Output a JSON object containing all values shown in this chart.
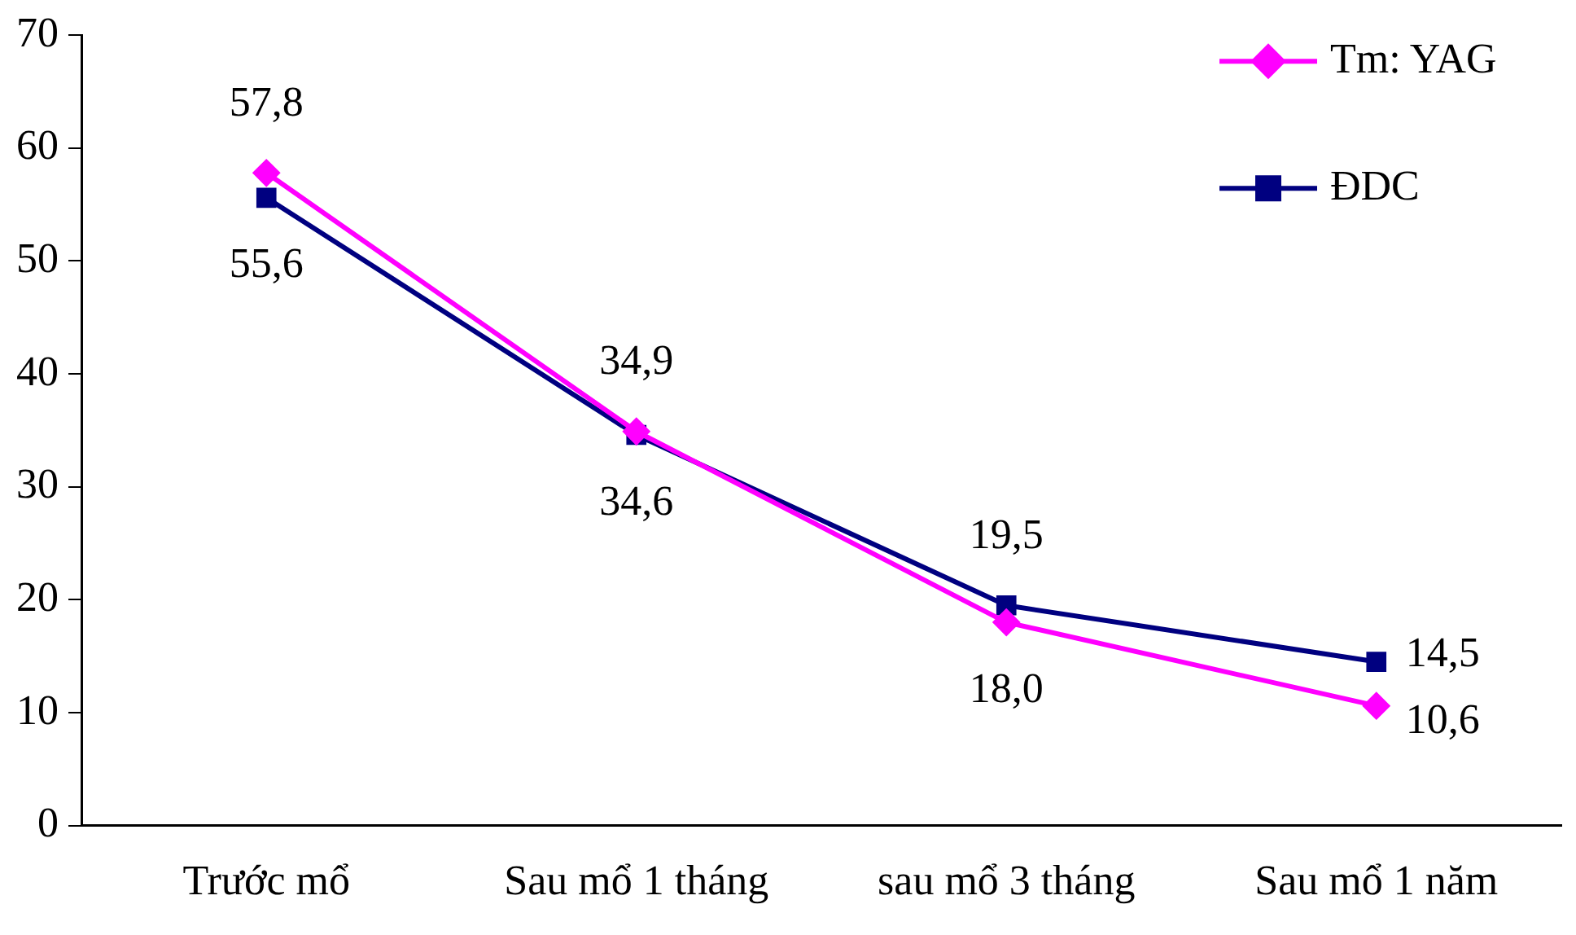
{
  "chart_data": {
    "type": "line",
    "categories": [
      "Trước mổ",
      "Sau mổ 1 tháng",
      "sau mổ 3 tháng",
      "Sau mổ 1 năm"
    ],
    "series": [
      {
        "name": "Tm: YAG",
        "color": "#ff00ff",
        "marker": "diamond",
        "values": [
          57.8,
          34.9,
          18.0,
          10.6
        ],
        "value_labels": [
          "57,8",
          "34,9",
          "18,0",
          "10,6"
        ]
      },
      {
        "name": "ĐDC",
        "color": "#000080",
        "marker": "square",
        "values": [
          55.6,
          34.6,
          19.5,
          14.5
        ],
        "value_labels": [
          "55,6",
          "34,6",
          "19,5",
          "14,5"
        ]
      }
    ],
    "ylim": [
      0,
      70
    ],
    "yticks": [
      0,
      10,
      20,
      30,
      40,
      50,
      60,
      70
    ],
    "grid": false,
    "legend": "top right",
    "line_style": "solid"
  }
}
